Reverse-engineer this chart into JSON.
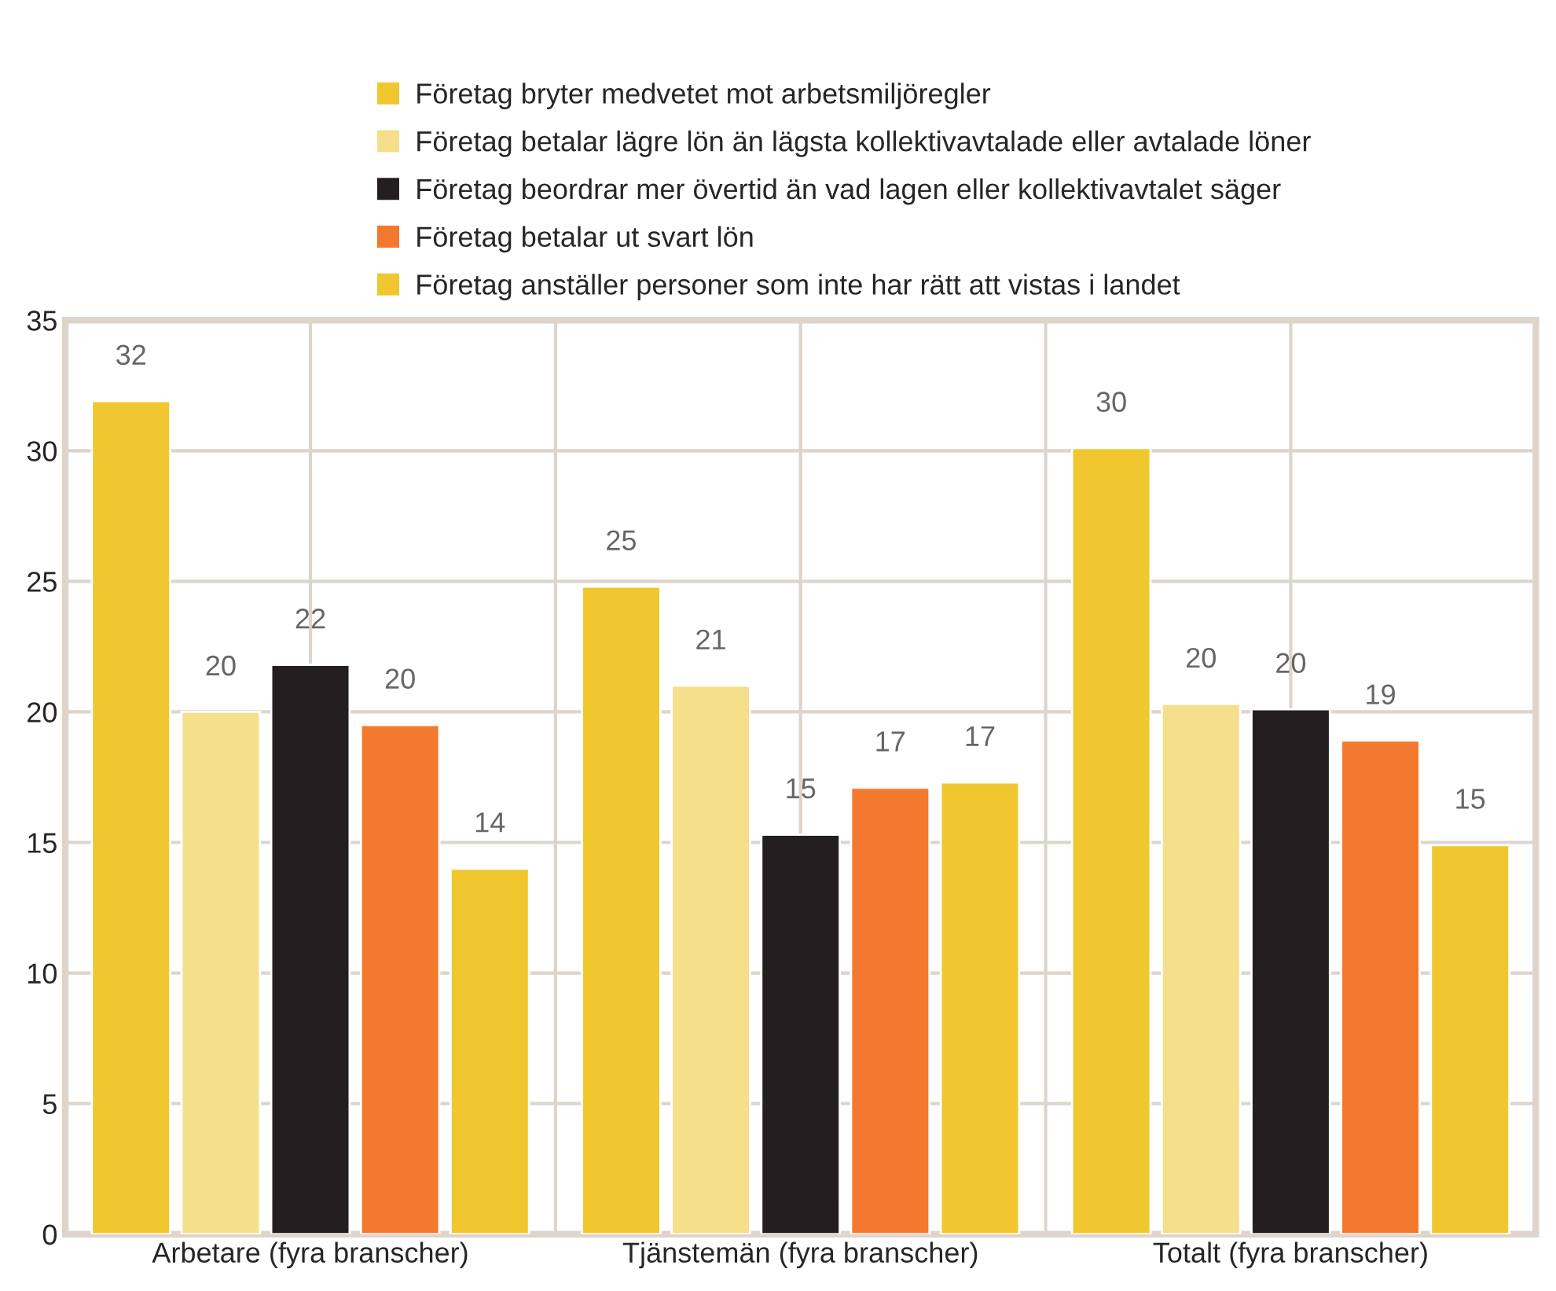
{
  "chart_data": {
    "type": "bar",
    "categories": [
      "Arbetare (fyra branscher)",
      "Tjänstemän (fyra branscher)",
      "Totalt (fyra branscher)"
    ],
    "series": [
      {
        "name": "Företag bryter medvetet mot arbetsmiljöregler",
        "color": "#f1c72f",
        "values": [
          31.9,
          24.8,
          30.1
        ],
        "value_labels": [
          "32",
          "25",
          "30"
        ]
      },
      {
        "name": "Företag betalar lägre lön än lägsta kollektivavtalade eller avtalade löner",
        "color": "#f5df8b",
        "values": [
          20.0,
          21.0,
          20.3
        ],
        "value_labels": [
          "20",
          "21",
          "20"
        ]
      },
      {
        "name": "Företag beordrar mer övertid än vad lagen eller kollektivavtalet säger",
        "color": "#231f20",
        "values": [
          21.8,
          15.3,
          20.1
        ],
        "value_labels": [
          "22",
          "15",
          "20"
        ]
      },
      {
        "name": "Företag betalar ut svart lön",
        "color": "#f3792e",
        "values": [
          19.5,
          17.1,
          18.9
        ],
        "value_labels": [
          "20",
          "17",
          "19"
        ]
      },
      {
        "name": "Företag anställer personer som inte har rätt att vistas i landet",
        "color": "#f1c72f",
        "values": [
          14.0,
          17.3,
          14.9
        ],
        "value_labels": [
          "14",
          "17",
          "15"
        ]
      }
    ],
    "ylim": [
      0,
      35
    ],
    "yticks": [
      0,
      5,
      10,
      15,
      20,
      25,
      30,
      35
    ],
    "grid": true,
    "legend": "top"
  }
}
